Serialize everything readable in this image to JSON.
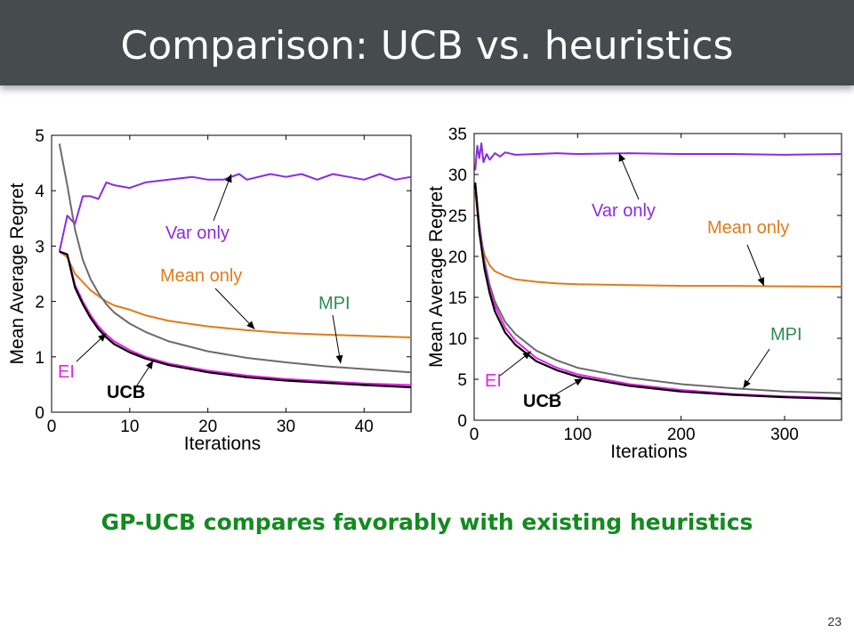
{
  "slide": {
    "title": "Comparison: UCB vs. heuristics",
    "caption": "GP-UCB compares favorably with existing heuristics",
    "page_number": "23"
  },
  "colors": {
    "title_bar": "#464b4e",
    "caption": "#138a1f",
    "Var only": "#8a2be2",
    "Mean only": "#e07b1a",
    "MPI": "#6b6b6b",
    "EI": "#e620e6",
    "UCB": "#000000"
  },
  "chart_data": [
    {
      "type": "line",
      "xlabel": "Iterations",
      "ylabel": "Mean Average Regret",
      "xlim": [
        0,
        46
      ],
      "ylim": [
        0,
        5
      ],
      "xticks": [
        0,
        10,
        20,
        30,
        40
      ],
      "yticks": [
        0,
        1,
        2,
        3,
        4,
        5
      ],
      "series": [
        {
          "name": "Var only",
          "x": [
            1,
            2,
            3,
            4,
            5,
            6,
            7,
            8,
            10,
            12,
            15,
            18,
            20,
            22,
            24,
            25,
            28,
            30,
            32,
            34,
            36,
            38,
            40,
            42,
            44,
            46
          ],
          "y": [
            2.9,
            3.55,
            3.4,
            3.9,
            3.9,
            3.85,
            4.15,
            4.1,
            4.05,
            4.15,
            4.2,
            4.25,
            4.2,
            4.2,
            4.3,
            4.2,
            4.3,
            4.25,
            4.3,
            4.2,
            4.3,
            4.25,
            4.2,
            4.3,
            4.2,
            4.25
          ]
        },
        {
          "name": "Mean only",
          "x": [
            1,
            2,
            3,
            4,
            5,
            6,
            7,
            8,
            10,
            12,
            15,
            20,
            25,
            30,
            35,
            40,
            46
          ],
          "y": [
            2.9,
            2.8,
            2.5,
            2.35,
            2.2,
            2.1,
            2.0,
            1.93,
            1.85,
            1.75,
            1.65,
            1.55,
            1.48,
            1.43,
            1.4,
            1.38,
            1.35
          ]
        },
        {
          "name": "MPI",
          "x": [
            1,
            2,
            3,
            4,
            5,
            6,
            7,
            8,
            10,
            12,
            15,
            20,
            25,
            30,
            35,
            40,
            46
          ],
          "y": [
            4.85,
            4.1,
            3.3,
            2.75,
            2.4,
            2.15,
            1.95,
            1.8,
            1.6,
            1.45,
            1.28,
            1.1,
            0.98,
            0.9,
            0.83,
            0.78,
            0.72
          ]
        },
        {
          "name": "EI",
          "x": [
            1,
            2,
            3,
            4,
            5,
            6,
            7,
            8,
            10,
            12,
            15,
            20,
            25,
            30,
            35,
            40,
            46
          ],
          "y": [
            2.9,
            2.85,
            2.3,
            2.0,
            1.75,
            1.55,
            1.4,
            1.28,
            1.12,
            1.0,
            0.88,
            0.75,
            0.66,
            0.6,
            0.56,
            0.52,
            0.49
          ]
        },
        {
          "name": "UCB",
          "x": [
            1,
            2,
            3,
            4,
            5,
            6,
            7,
            8,
            10,
            12,
            15,
            20,
            25,
            30,
            35,
            40,
            46
          ],
          "y": [
            2.9,
            2.85,
            2.25,
            1.95,
            1.7,
            1.5,
            1.35,
            1.23,
            1.08,
            0.97,
            0.85,
            0.72,
            0.63,
            0.57,
            0.53,
            0.49,
            0.45
          ]
        }
      ],
      "annotations": [
        {
          "text": "Var only",
          "series": "Var only"
        },
        {
          "text": "Mean only",
          "series": "Mean only"
        },
        {
          "text": "MPI",
          "series": "MPI"
        },
        {
          "text": "EI",
          "series": "EI"
        },
        {
          "text": "UCB",
          "series": "UCB"
        }
      ]
    },
    {
      "type": "line",
      "xlabel": "Iterations",
      "ylabel": "Mean Average Regret",
      "xlim": [
        0,
        355
      ],
      "ylim": [
        0,
        35
      ],
      "xticks": [
        0,
        100,
        200,
        300
      ],
      "yticks": [
        0,
        5,
        10,
        15,
        20,
        25,
        30,
        35
      ],
      "series": [
        {
          "name": "Var only",
          "x": [
            1,
            3,
            5,
            7,
            9,
            12,
            15,
            20,
            25,
            30,
            40,
            60,
            80,
            100,
            150,
            200,
            250,
            300,
            355
          ],
          "y": [
            30.5,
            33.5,
            32.0,
            33.8,
            31.5,
            32.5,
            31.8,
            32.6,
            32.2,
            32.7,
            32.4,
            32.5,
            32.6,
            32.5,
            32.6,
            32.5,
            32.5,
            32.4,
            32.5
          ]
        },
        {
          "name": "Mean only",
          "x": [
            1,
            5,
            10,
            15,
            20,
            30,
            40,
            60,
            80,
            100,
            150,
            200,
            250,
            300,
            355
          ],
          "y": [
            28.0,
            23.0,
            20.2,
            18.9,
            18.2,
            17.6,
            17.2,
            16.9,
            16.7,
            16.6,
            16.5,
            16.4,
            16.4,
            16.35,
            16.3
          ]
        },
        {
          "name": "MPI",
          "x": [
            1,
            5,
            10,
            15,
            20,
            30,
            40,
            60,
            80,
            100,
            150,
            200,
            250,
            300,
            355
          ],
          "y": [
            29.0,
            24.0,
            19.5,
            16.5,
            14.5,
            12.0,
            10.5,
            8.5,
            7.3,
            6.4,
            5.2,
            4.4,
            3.9,
            3.5,
            3.3
          ]
        },
        {
          "name": "EI",
          "x": [
            1,
            5,
            10,
            15,
            20,
            30,
            40,
            60,
            80,
            100,
            150,
            200,
            250,
            300,
            355
          ],
          "y": [
            29.0,
            23.5,
            19.0,
            16.0,
            14.0,
            11.3,
            9.7,
            7.6,
            6.4,
            5.6,
            4.4,
            3.7,
            3.2,
            2.9,
            2.7
          ]
        },
        {
          "name": "UCB",
          "x": [
            1,
            5,
            10,
            15,
            20,
            30,
            40,
            60,
            80,
            100,
            150,
            200,
            250,
            300,
            355
          ],
          "y": [
            29.0,
            23.0,
            18.5,
            15.5,
            13.3,
            10.7,
            9.2,
            7.2,
            6.1,
            5.3,
            4.2,
            3.5,
            3.1,
            2.8,
            2.6
          ]
        }
      ],
      "annotations": [
        {
          "text": "Var only",
          "series": "Var only"
        },
        {
          "text": "Mean only",
          "series": "Mean only"
        },
        {
          "text": "MPI",
          "series": "MPI"
        },
        {
          "text": "EI",
          "series": "EI"
        },
        {
          "text": "UCB",
          "series": "UCB"
        }
      ]
    }
  ]
}
